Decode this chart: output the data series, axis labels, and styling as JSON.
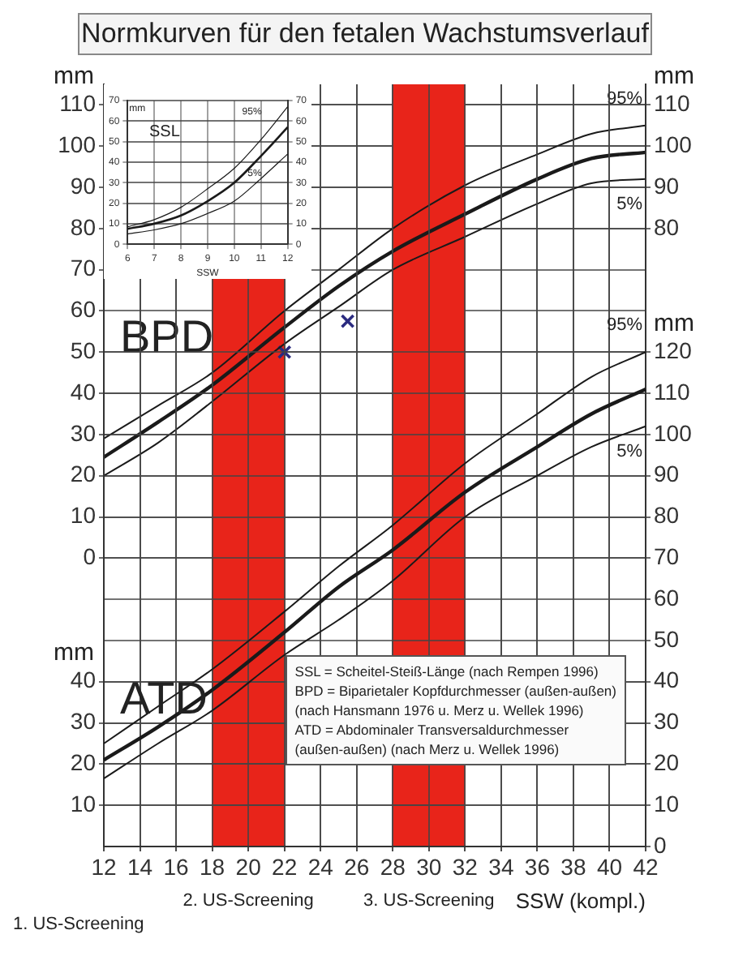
{
  "chart_data": [
    {
      "type": "line",
      "title": "Normkurven für den fetalen Wachstumsverlauf",
      "xlabel": "SSW (kompl.)",
      "ylabel": "mm",
      "y2label": "mm",
      "x": [
        12,
        15,
        18,
        22,
        25,
        28,
        32,
        36,
        39,
        42
      ],
      "series": [
        {
          "name": "95%",
          "color": "#1a1a1a",
          "values": [
            29,
            37,
            45,
            60,
            70,
            80,
            90.5,
            98,
            103,
            105
          ]
        },
        {
          "color": "#1a1a1a",
          "values": [
            24.5,
            33,
            42,
            56,
            66,
            74.5,
            83.5,
            92,
            97,
            98.5
          ]
        },
        {
          "name": "5%",
          "color": "#1a1a1a",
          "values": [
            20,
            28,
            38,
            52,
            61,
            70,
            78,
            86,
            91,
            92
          ]
        },
        {
          "type": "scatter",
          "marker": "cross",
          "color": "#2b2b80",
          "x": [
            22,
            25.5
          ],
          "values": [
            50,
            57.5
          ]
        }
      ],
      "marker": "none",
      "grid": true,
      "xlim": [
        12,
        42
      ],
      "xticks": [
        12,
        14,
        16,
        18,
        20,
        22,
        24,
        26,
        28,
        30,
        32,
        34,
        36,
        38,
        40,
        42
      ],
      "ylim": [
        -70,
        115
      ],
      "yticks": [
        0,
        10,
        20,
        30,
        40,
        50,
        60,
        70,
        80,
        90,
        100,
        110
      ],
      "y2lim": [
        -70,
        115
      ],
      "y2ticks": [
        80,
        90,
        100,
        110
      ],
      "bands": [
        {
          "axis": "x",
          "from": 18,
          "to": 22,
          "label": "2. US-Screening",
          "color": "#e8241a"
        },
        {
          "axis": "x",
          "from": 28,
          "to": 32,
          "label": "3. US-Screening",
          "color": "#e8241a"
        }
      ],
      "annotations": [
        "BPD",
        "1. US-Screening",
        "SSL  = Scheitel-Steiß-Länge (nach Rempen 1996)",
        "BPD = Biparietaler Kopfdurchmesser (außen-außen)",
        "(nach Hansmann 1976 u. Merz u. Wellek 1996)",
        "ATD = Abdominaler Transversaldurchmesser",
        "(außen-außen) (nach Merz u. Wellek 1996)"
      ]
    },
    {
      "type": "line",
      "ylabel": "mm",
      "y2label": "mm",
      "tick_labels": "y",
      "x": [
        12,
        15,
        18,
        22,
        25,
        28,
        32,
        36,
        39,
        42
      ],
      "series": [
        {
          "name": "95%",
          "color": "#1a1a1a",
          "values": [
            25,
            34,
            43,
            57,
            68,
            78,
            93,
            105,
            114,
            120
          ]
        },
        {
          "color": "#1a1a1a",
          "values": [
            21,
            29,
            38,
            52,
            63,
            72,
            86,
            97,
            105,
            111
          ]
        },
        {
          "name": "5%",
          "color": "#1a1a1a",
          "values": [
            16.5,
            25,
            33,
            46.5,
            55,
            64.5,
            80,
            90,
            97,
            102
          ]
        }
      ],
      "marker": "none",
      "grid": true,
      "xlim": [
        12,
        42
      ],
      "xticks": [
        12,
        14,
        16,
        18,
        20,
        22,
        24,
        26,
        28,
        30,
        32,
        34,
        36,
        38,
        40,
        42
      ],
      "ylim": [
        0,
        185
      ],
      "yticks": [
        10,
        20,
        30,
        40
      ],
      "y2lim": [
        0,
        185
      ],
      "y2ticks": [
        0,
        10,
        20,
        30,
        40,
        50,
        60,
        70,
        80,
        90,
        100,
        110,
        120
      ],
      "annotations": [
        "ATD"
      ]
    },
    {
      "type": "line",
      "xlabel": "SSW",
      "ylabel": "mm",
      "x": [
        6,
        7,
        8,
        9,
        10,
        11,
        12
      ],
      "series": [
        {
          "name": "95%",
          "color": "#1a1a1a",
          "values": [
            8.5,
            12,
            18,
            27,
            37,
            51,
            67
          ]
        },
        {
          "color": "#1a1a1a",
          "values": [
            7.5,
            10,
            14,
            21,
            30,
            43,
            57
          ]
        },
        {
          "name": "5%",
          "color": "#1a1a1a",
          "values": [
            5,
            7,
            10,
            15,
            21,
            32,
            44
          ]
        }
      ],
      "marker": "none",
      "grid": true,
      "xlim": [
        6,
        12
      ],
      "xticks": [
        6,
        7,
        8,
        9,
        10,
        11,
        12
      ],
      "ylim": [
        0,
        70
      ],
      "yticks": [
        0,
        10,
        20,
        30,
        40,
        50,
        60,
        70
      ],
      "y2lim": [
        0,
        70
      ],
      "y2ticks": [
        0,
        10,
        20,
        30,
        40,
        50,
        60,
        70
      ],
      "annotations": [
        "SSL"
      ]
    }
  ]
}
